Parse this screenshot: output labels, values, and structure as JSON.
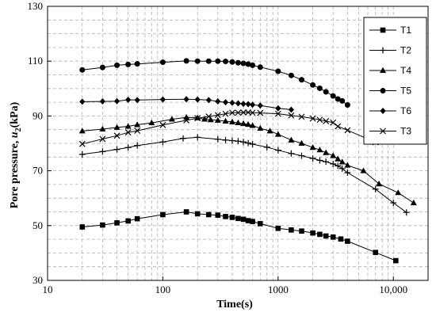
{
  "chart_data": {
    "type": "line",
    "xlabel": "Time(s)",
    "ylabel_parts": {
      "prefix": "Pore pressure, ",
      "var": "u",
      "sub": "2",
      "suffix": "(kPa)"
    },
    "xscale": "log",
    "xlim": [
      10,
      20000
    ],
    "ylim": [
      30,
      130
    ],
    "x_ticks": [
      10,
      100,
      1000,
      10000
    ],
    "x_tick_labels": [
      "10",
      "100",
      "1000",
      "10,000"
    ],
    "y_ticks": [
      30,
      50,
      70,
      90,
      110,
      130
    ],
    "y_tick_labels": [
      "30",
      "50",
      "70",
      "90",
      "110",
      "130"
    ],
    "grid": "dashed minor and major",
    "legend_position": "top-right",
    "series": [
      {
        "name": "T1",
        "marker": "square",
        "x": [
          20,
          30,
          40,
          50,
          60,
          100,
          160,
          200,
          250,
          300,
          350,
          400,
          450,
          500,
          550,
          600,
          700,
          1000,
          1300,
          1600,
          2000,
          2300,
          2600,
          3000,
          3500,
          4000,
          7000,
          10500
        ],
        "y": [
          49.5,
          50.2,
          51,
          51.7,
          52.5,
          54,
          55,
          54.3,
          54,
          53.8,
          53.3,
          53,
          52.6,
          52.3,
          51.8,
          51.5,
          50.7,
          49,
          48.4,
          48,
          47.3,
          46.8,
          46.2,
          45.8,
          45.1,
          44.3,
          40.2,
          37.2
        ]
      },
      {
        "name": "T2",
        "marker": "plus",
        "x": [
          20,
          30,
          40,
          50,
          60,
          100,
          150,
          200,
          300,
          350,
          400,
          450,
          500,
          550,
          600,
          800,
          1000,
          1300,
          1600,
          2000,
          2300,
          2600,
          3000,
          3300,
          3600,
          4000,
          7000,
          10000,
          13000
        ],
        "y": [
          76,
          77,
          77.8,
          78.5,
          79.2,
          80.5,
          81.8,
          82.2,
          81.5,
          81.2,
          81,
          80.8,
          80.5,
          80.1,
          79.7,
          78.6,
          77.5,
          76.3,
          75.5,
          74.5,
          73.8,
          73.3,
          72.5,
          71.8,
          70.8,
          69.3,
          63.3,
          58.3,
          54.8
        ]
      },
      {
        "name": "T4",
        "marker": "triangle",
        "x": [
          20,
          30,
          40,
          50,
          60,
          80,
          120,
          160,
          200,
          230,
          260,
          300,
          350,
          400,
          450,
          500,
          550,
          600,
          700,
          850,
          1000,
          1300,
          1600,
          2000,
          2300,
          2600,
          3000,
          3300,
          3600,
          4000,
          5500,
          7500,
          11000,
          15000
        ],
        "y": [
          84.5,
          85.2,
          85.8,
          86.2,
          86.8,
          87.5,
          88.8,
          89.5,
          89.3,
          88.8,
          88.6,
          88.4,
          88.1,
          87.8,
          87.5,
          87.2,
          86.9,
          86.5,
          85.5,
          84.5,
          83.3,
          81.2,
          80,
          78.5,
          77.6,
          76.6,
          75.5,
          74.3,
          73.2,
          72,
          70,
          65.2,
          62,
          58.3
        ]
      },
      {
        "name": "T5",
        "marker": "circle",
        "x": [
          20,
          30,
          40,
          50,
          60,
          100,
          160,
          200,
          250,
          300,
          350,
          400,
          450,
          500,
          550,
          600,
          700,
          1000,
          1300,
          1600,
          2000,
          2300,
          2600,
          3000,
          3300,
          3600,
          4000
        ],
        "y": [
          106.8,
          107.7,
          108.5,
          108.8,
          109,
          109.6,
          110.1,
          110,
          110,
          110,
          109.9,
          109.7,
          109.4,
          109.2,
          108.9,
          108.5,
          107.8,
          106.3,
          104.8,
          103.2,
          101.3,
          100.1,
          98.8,
          97.3,
          96.2,
          95.5,
          94
        ]
      },
      {
        "name": "T6",
        "marker": "diamond",
        "x": [
          20,
          30,
          40,
          50,
          60,
          100,
          160,
          200,
          250,
          300,
          350,
          400,
          450,
          500,
          550,
          600,
          700,
          1000,
          1300
        ],
        "y": [
          95.2,
          95.3,
          95.4,
          95.9,
          95.8,
          96,
          96.1,
          96,
          95.8,
          95.3,
          95,
          94.8,
          94.6,
          94.4,
          94.3,
          94.1,
          93.8,
          92.8,
          92.3
        ]
      },
      {
        "name": "T3",
        "marker": "cross",
        "x": [
          20,
          30,
          40,
          50,
          60,
          100,
          160,
          200,
          250,
          300,
          350,
          400,
          450,
          500,
          550,
          600,
          700,
          1000,
          1300,
          1600,
          2000,
          2300,
          2600,
          3000,
          3300,
          4000,
          7000
        ],
        "y": [
          79.8,
          81.6,
          82.8,
          84,
          84.6,
          86.7,
          88.4,
          89.2,
          89.8,
          90.3,
          90.8,
          91.2,
          91.2,
          91.3,
          91.3,
          91.2,
          91.1,
          90.8,
          90.2,
          89.7,
          89.1,
          88.6,
          88.1,
          87.6,
          86.2,
          84.8,
          80.4
        ]
      }
    ]
  }
}
